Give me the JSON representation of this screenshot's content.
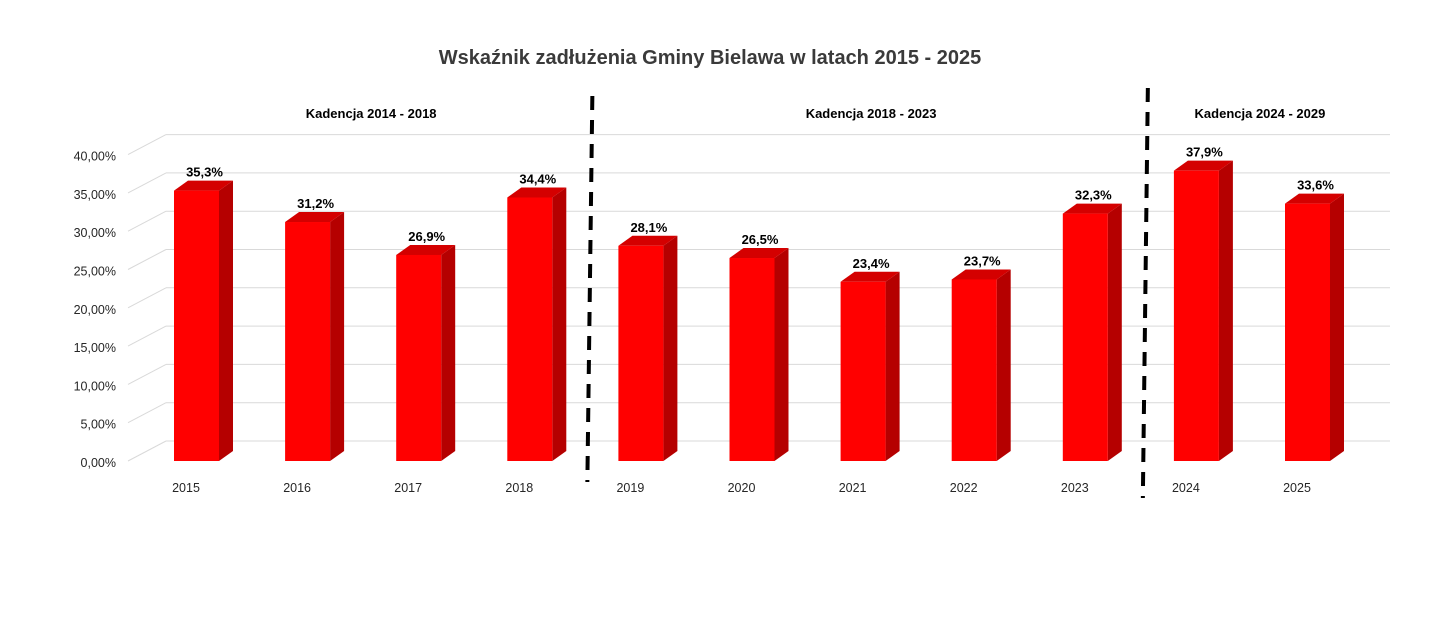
{
  "chart_data": {
    "type": "bar",
    "title": "Wskaźnik zadłużenia Gminy Bielawa w latach 2015 - 2025",
    "xlabel": "",
    "ylabel": "",
    "categories": [
      "2015",
      "2016",
      "2017",
      "2018",
      "2019",
      "2020",
      "2021",
      "2022",
      "2023",
      "2024",
      "2025"
    ],
    "values": [
      35.3,
      31.2,
      26.9,
      34.4,
      28.1,
      26.5,
      23.4,
      23.7,
      32.3,
      37.9,
      33.6
    ],
    "data_labels": [
      "35,3%",
      "31,2%",
      "26,9%",
      "34,4%",
      "28,1%",
      "26,5%",
      "23,4%",
      "23,7%",
      "32,3%",
      "37,9%",
      "33,6%"
    ],
    "ylim": [
      0,
      40
    ],
    "y_ticks": [
      "0,00%",
      "5,00%",
      "10,00%",
      "15,00%",
      "20,00%",
      "25,00%",
      "30,00%",
      "35,00%",
      "40,00%"
    ],
    "grid": true,
    "legend": "none",
    "style": "3d-column",
    "colors": {
      "bar_front": "#ff0000",
      "bar_side": "#b50000",
      "bar_top": "#d40000",
      "grid": "#d9d9d9",
      "divider": "#000000"
    },
    "term_annotations": [
      {
        "label": "Kadencja 2014 - 2018",
        "from": "2015",
        "to": "2018"
      },
      {
        "label": "Kadencja 2018 - 2023",
        "from": "2019",
        "to": "2023"
      },
      {
        "label": "Kadencja 2024 - 2029",
        "from": "2024",
        "to": "2025"
      }
    ]
  }
}
